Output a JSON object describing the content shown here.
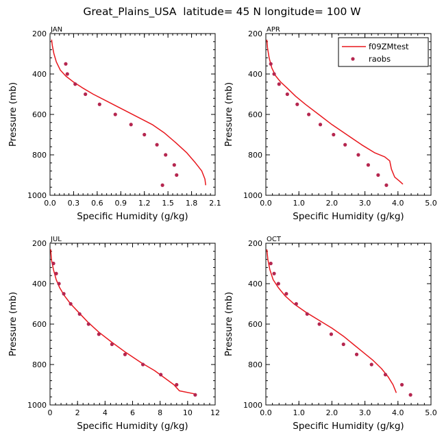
{
  "title": "Great_Plains_USA  latitude= 45 N longitude= 100 W",
  "colors": {
    "model": "#e8161c",
    "obs": "#b5264f",
    "axis": "#000000"
  },
  "legend": {
    "model_label": "f09ZMtest",
    "obs_label": "raobs"
  },
  "chart_data": [
    {
      "type": "line",
      "panel": "JAN",
      "xlabel": "Specific Humidity (g/kg)",
      "ylabel": "Pressure (mb)",
      "xlim": [
        0,
        2.1
      ],
      "ylim": [
        1000,
        200
      ],
      "xticks": [
        0.0,
        0.3,
        0.6,
        0.9,
        1.2,
        1.5,
        1.8,
        2.1
      ],
      "xticklabels": [
        "0.0",
        "0.3",
        "0.6",
        "0.9",
        "1.2",
        "1.5",
        "1.8",
        "2.1"
      ],
      "yticks": [
        200,
        400,
        600,
        800,
        1000
      ],
      "yticklabels": [
        "200",
        "400",
        "600",
        "800",
        "1000"
      ],
      "show_legend": false,
      "series": [
        {
          "name": "f09ZMtest",
          "kind": "line",
          "x": [
            0.02,
            0.03,
            0.05,
            0.08,
            0.13,
            0.2,
            0.3,
            0.42,
            0.55,
            0.7,
            0.85,
            1.0,
            1.15,
            1.3,
            1.45,
            1.6,
            1.74,
            1.85,
            1.93,
            1.97,
            1.98
          ],
          "y": [
            230,
            260,
            300,
            340,
            380,
            410,
            440,
            470,
            500,
            530,
            560,
            590,
            620,
            650,
            690,
            740,
            790,
            840,
            880,
            920,
            950
          ]
        },
        {
          "name": "raobs",
          "kind": "scatter",
          "x": [
            0.2,
            0.22,
            0.32,
            0.45,
            0.63,
            0.83,
            1.03,
            1.2,
            1.36,
            1.47,
            1.58,
            1.61,
            1.43
          ],
          "y": [
            350,
            400,
            450,
            500,
            550,
            600,
            650,
            700,
            750,
            800,
            850,
            900,
            950
          ]
        }
      ]
    },
    {
      "type": "line",
      "panel": "APR",
      "xlabel": "Specific Humidity (g/kg)",
      "ylabel": "Pressure (mb)",
      "xlim": [
        0,
        5
      ],
      "ylim": [
        1000,
        200
      ],
      "xticks": [
        0,
        1,
        2,
        3,
        4,
        5
      ],
      "xticklabels": [
        "0.0",
        "1.0",
        "2.0",
        "3.0",
        "4.0",
        "5.0"
      ],
      "yticks": [
        200,
        400,
        600,
        800,
        1000
      ],
      "yticklabels": [
        "200",
        "400",
        "600",
        "800",
        "1000"
      ],
      "show_legend": true,
      "series": [
        {
          "name": "f09ZMtest",
          "kind": "line",
          "x": [
            0.03,
            0.05,
            0.1,
            0.18,
            0.3,
            0.45,
            0.65,
            0.9,
            1.2,
            1.6,
            2.0,
            2.45,
            2.9,
            3.3,
            3.6,
            3.75,
            3.8,
            3.9,
            4.05,
            4.15
          ],
          "y": [
            230,
            270,
            320,
            370,
            410,
            440,
            470,
            510,
            550,
            600,
            650,
            700,
            750,
            790,
            810,
            830,
            870,
            910,
            930,
            945
          ]
        },
        {
          "name": "raobs",
          "kind": "scatter",
          "x": [
            0.15,
            0.25,
            0.4,
            0.65,
            0.95,
            1.3,
            1.65,
            2.05,
            2.4,
            2.8,
            3.1,
            3.4,
            3.65
          ],
          "y": [
            350,
            400,
            450,
            500,
            550,
            600,
            650,
            700,
            750,
            800,
            850,
            900,
            950
          ]
        }
      ]
    },
    {
      "type": "line",
      "panel": "JUL",
      "xlabel": "Specific Humidity (g/kg)",
      "ylabel": "Pressure (mb)",
      "xlim": [
        0,
        12
      ],
      "ylim": [
        1000,
        200
      ],
      "xticks": [
        0,
        2,
        4,
        6,
        8,
        10,
        12
      ],
      "xticklabels": [
        "0",
        "2",
        "4",
        "6",
        "8",
        "10",
        "12"
      ],
      "yticks": [
        200,
        400,
        600,
        800,
        1000
      ],
      "yticklabels": [
        "200",
        "400",
        "600",
        "800",
        "1000"
      ],
      "show_legend": false,
      "series": [
        {
          "name": "f09ZMtest",
          "kind": "line",
          "x": [
            0.05,
            0.1,
            0.25,
            0.45,
            0.7,
            1.05,
            1.5,
            2.05,
            2.75,
            3.55,
            4.5,
            5.5,
            6.6,
            7.6,
            8.4,
            9.0,
            9.4,
            10.5
          ],
          "y": [
            230,
            280,
            330,
            380,
            420,
            460,
            500,
            540,
            590,
            640,
            690,
            740,
            790,
            830,
            870,
            900,
            930,
            945
          ]
        },
        {
          "name": "raobs",
          "kind": "scatter",
          "x": [
            0.25,
            0.45,
            0.65,
            1.0,
            1.5,
            2.15,
            2.8,
            3.55,
            4.5,
            5.45,
            6.75,
            8.05,
            9.2,
            10.55
          ],
          "y": [
            300,
            350,
            400,
            450,
            500,
            550,
            600,
            650,
            700,
            750,
            800,
            850,
            900,
            950
          ]
        }
      ]
    },
    {
      "type": "line",
      "panel": "OCT",
      "xlabel": "Specific Humidity (g/kg)",
      "ylabel": "Pressure (mb)",
      "xlim": [
        0,
        5
      ],
      "ylim": [
        1000,
        200
      ],
      "xticks": [
        0,
        1,
        2,
        3,
        4,
        5
      ],
      "xticklabels": [
        "0.0",
        "1.0",
        "2.0",
        "3.0",
        "4.0",
        "5.0"
      ],
      "yticks": [
        200,
        400,
        600,
        800,
        1000
      ],
      "yticklabels": [
        "200",
        "400",
        "600",
        "800",
        "1000"
      ],
      "show_legend": false,
      "series": [
        {
          "name": "f09ZMtest",
          "kind": "line",
          "x": [
            0.03,
            0.06,
            0.12,
            0.22,
            0.38,
            0.58,
            0.85,
            1.2,
            1.6,
            2.0,
            2.35,
            2.65,
            2.95,
            3.25,
            3.5,
            3.7,
            3.85,
            3.95
          ],
          "y": [
            230,
            280,
            330,
            380,
            420,
            460,
            500,
            540,
            580,
            620,
            660,
            700,
            740,
            780,
            820,
            860,
            900,
            940
          ]
        },
        {
          "name": "raobs",
          "kind": "scatter",
          "x": [
            0.15,
            0.25,
            0.38,
            0.62,
            0.92,
            1.25,
            1.62,
            1.98,
            2.35,
            2.75,
            3.2,
            3.62,
            4.12,
            4.38
          ],
          "y": [
            300,
            350,
            400,
            450,
            500,
            550,
            600,
            650,
            700,
            750,
            800,
            850,
            900,
            950
          ]
        }
      ]
    }
  ]
}
